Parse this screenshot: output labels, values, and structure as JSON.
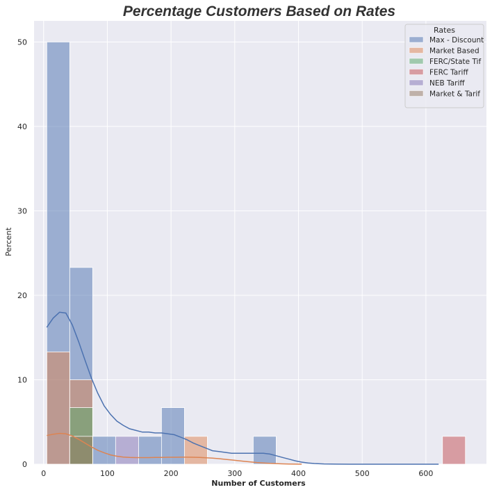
{
  "chart_data": {
    "type": "histogram",
    "title": "Percentage Customers Based on Rates",
    "xlabel": "Number of Customers",
    "ylabel": "Percent",
    "xlim": [
      -15,
      695
    ],
    "ylim": [
      0,
      52.5
    ],
    "xticks": [
      0,
      100,
      200,
      300,
      400,
      500,
      600
    ],
    "yticks": [
      0,
      10,
      20,
      30,
      40,
      50
    ],
    "grid": true,
    "background": "#eaeaf2",
    "legend": {
      "title": "Rates",
      "position": "top-right"
    },
    "series": [
      {
        "name": "Max - Discount",
        "color": "#4c72b0",
        "bins": [
          {
            "x0": 5,
            "x1": 41,
            "value": 50
          },
          {
            "x0": 41,
            "x1": 77,
            "value": 23.3
          },
          {
            "x0": 77,
            "x1": 113,
            "value": 3.3
          },
          {
            "x0": 149,
            "x1": 185,
            "value": 3.3
          },
          {
            "x0": 185,
            "x1": 221,
            "value": 6.7
          },
          {
            "x0": 329,
            "x1": 365,
            "value": 3.3
          }
        ],
        "kde": [
          [
            5,
            16.2
          ],
          [
            15,
            17.3
          ],
          [
            25,
            18
          ],
          [
            35,
            17.9
          ],
          [
            45,
            16.5
          ],
          [
            55,
            14.5
          ],
          [
            65,
            12.3
          ],
          [
            75,
            10.2
          ],
          [
            85,
            8.4
          ],
          [
            95,
            6.9
          ],
          [
            105,
            5.9
          ],
          [
            115,
            5.1
          ],
          [
            125,
            4.6
          ],
          [
            135,
            4.2
          ],
          [
            145,
            4.0
          ],
          [
            155,
            3.8
          ],
          [
            165,
            3.8
          ],
          [
            175,
            3.7
          ],
          [
            185,
            3.7
          ],
          [
            195,
            3.6
          ],
          [
            205,
            3.5
          ],
          [
            215,
            3.2
          ],
          [
            225,
            2.9
          ],
          [
            235,
            2.5
          ],
          [
            245,
            2.2
          ],
          [
            255,
            1.9
          ],
          [
            265,
            1.6
          ],
          [
            275,
            1.5
          ],
          [
            285,
            1.4
          ],
          [
            295,
            1.3
          ],
          [
            305,
            1.3
          ],
          [
            315,
            1.3
          ],
          [
            325,
            1.3
          ],
          [
            335,
            1.3
          ],
          [
            345,
            1.3
          ],
          [
            355,
            1.2
          ],
          [
            365,
            1.0
          ],
          [
            375,
            0.8
          ],
          [
            385,
            0.6
          ],
          [
            395,
            0.4
          ],
          [
            405,
            0.25
          ],
          [
            415,
            0.15
          ],
          [
            425,
            0.08
          ],
          [
            440,
            0.03
          ],
          [
            460,
            0.01
          ],
          [
            480,
            0.0
          ],
          [
            500,
            0.0
          ],
          [
            540,
            0.0
          ],
          [
            580,
            0.0
          ],
          [
            620,
            0.0
          ]
        ]
      },
      {
        "name": "Market Based",
        "color": "#dd8452",
        "bins": [
          {
            "x0": 5,
            "x1": 41,
            "value": 13.3
          },
          {
            "x0": 41,
            "x1": 77,
            "value": 10
          },
          {
            "x0": 221,
            "x1": 257,
            "value": 3.3
          }
        ],
        "kde": [
          [
            5,
            3.4
          ],
          [
            15,
            3.55
          ],
          [
            25,
            3.65
          ],
          [
            35,
            3.6
          ],
          [
            45,
            3.35
          ],
          [
            55,
            2.95
          ],
          [
            65,
            2.5
          ],
          [
            75,
            2.05
          ],
          [
            85,
            1.65
          ],
          [
            95,
            1.35
          ],
          [
            105,
            1.1
          ],
          [
            115,
            0.95
          ],
          [
            125,
            0.85
          ],
          [
            135,
            0.8
          ],
          [
            145,
            0.78
          ],
          [
            155,
            0.78
          ],
          [
            165,
            0.78
          ],
          [
            175,
            0.8
          ],
          [
            185,
            0.8
          ],
          [
            195,
            0.82
          ],
          [
            205,
            0.82
          ],
          [
            215,
            0.83
          ],
          [
            225,
            0.83
          ],
          [
            235,
            0.82
          ],
          [
            245,
            0.8
          ],
          [
            255,
            0.76
          ],
          [
            265,
            0.72
          ],
          [
            275,
            0.66
          ],
          [
            285,
            0.58
          ],
          [
            295,
            0.5
          ],
          [
            305,
            0.42
          ],
          [
            315,
            0.34
          ],
          [
            325,
            0.27
          ],
          [
            335,
            0.2
          ],
          [
            345,
            0.15
          ],
          [
            355,
            0.1
          ],
          [
            365,
            0.07
          ],
          [
            375,
            0.04
          ],
          [
            385,
            0.02
          ],
          [
            395,
            0.01
          ],
          [
            405,
            0.0
          ]
        ]
      },
      {
        "name": "FERC/State Tif",
        "color": "#55a868",
        "bins": [
          {
            "x0": 41,
            "x1": 77,
            "value": 6.7
          }
        ]
      },
      {
        "name": "FERC Tariff",
        "color": "#c44e52",
        "bins": [
          {
            "x0": 626,
            "x1": 662,
            "value": 3.3
          }
        ]
      },
      {
        "name": "NEB Tariff",
        "color": "#8172b3",
        "bins": [
          {
            "x0": 113,
            "x1": 149,
            "value": 3.3
          }
        ]
      },
      {
        "name": "Market & Tarif",
        "color": "#937860",
        "bins": [
          {
            "x0": 41,
            "x1": 77,
            "value": 3.3
          }
        ]
      }
    ]
  }
}
